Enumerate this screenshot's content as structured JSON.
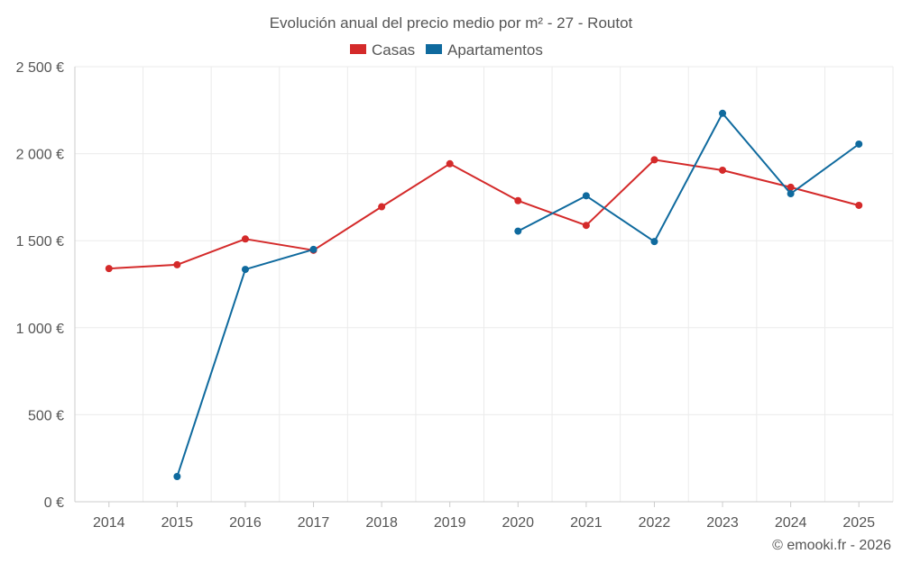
{
  "chart_data": {
    "type": "line",
    "title": "Evolución anual del precio medio por m² - 27 - Routot",
    "categories": [
      "2014",
      "2015",
      "2016",
      "2017",
      "2018",
      "2019",
      "2020",
      "2021",
      "2022",
      "2023",
      "2024",
      "2025"
    ],
    "series": [
      {
        "name": "Casas",
        "color": "#d42a2a",
        "values": [
          1340,
          1362,
          1510,
          1445,
          1695,
          1942,
          1730,
          1588,
          1965,
          1905,
          1807,
          1703
        ]
      },
      {
        "name": "Apartamentos",
        "color": "#0f6a9e",
        "values": [
          null,
          145,
          1335,
          1450,
          null,
          null,
          1555,
          1758,
          1495,
          2232,
          1770,
          2055
        ]
      }
    ],
    "yticks": [
      "0 €",
      "500 €",
      "1 000 €",
      "1 500 €",
      "2 000 €",
      "2 500 €"
    ],
    "ylim": [
      0,
      2500
    ],
    "grid": true,
    "legend": "top-center",
    "credit": "© emooki.fr - 2026",
    "colors": {
      "grid": "#ebebeb",
      "axis": "#cccccc",
      "text": "#555555"
    }
  }
}
